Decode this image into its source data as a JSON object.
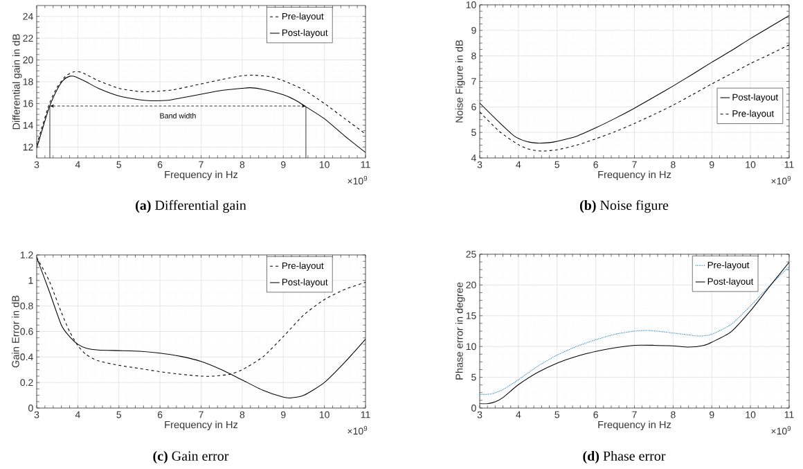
{
  "chart_data": [
    {
      "type": "line",
      "title": "**(a)** Differential gain",
      "xlabel": "Frequency in Hz",
      "ylabel": "Differential gain in dB",
      "xlim": [
        3,
        11
      ],
      "ylim": [
        11,
        25
      ],
      "xticks": [
        3,
        4,
        5,
        6,
        7,
        8,
        9,
        10,
        11
      ],
      "yticks": [
        12,
        14,
        16,
        18,
        20,
        22,
        24
      ],
      "grid": true,
      "legend": "top right",
      "series": [
        {
          "name": "Pre-layout",
          "color": "#000000",
          "line_style": "dashed",
          "x": [
            3,
            3.3,
            3.5,
            3.7,
            3.9,
            4.1,
            4.5,
            5,
            5.5,
            5.8,
            6.3,
            7,
            7.5,
            8,
            8.3,
            8.7,
            9,
            9.5,
            10,
            10.5,
            11
          ],
          "values": [
            12.2,
            15.9,
            17.5,
            18.5,
            18.9,
            18.85,
            18.1,
            17.4,
            17.1,
            17.1,
            17.25,
            17.8,
            18.2,
            18.55,
            18.6,
            18.45,
            18.1,
            17.25,
            16.0,
            14.6,
            13.2
          ]
        },
        {
          "name": "Post-layout",
          "color": "#000000",
          "line_style": "solid",
          "x": [
            3,
            3.3,
            3.5,
            3.65,
            3.8,
            3.95,
            4.2,
            4.5,
            5,
            5.5,
            5.8,
            6.2,
            6.5,
            7,
            7.5,
            8,
            8.2,
            8.5,
            9,
            9.3,
            9.55,
            10,
            10.5,
            11
          ],
          "values": [
            11.9,
            15.6,
            17.3,
            18.15,
            18.5,
            18.45,
            18.0,
            17.4,
            16.7,
            16.35,
            16.25,
            16.3,
            16.5,
            16.85,
            17.2,
            17.4,
            17.45,
            17.3,
            16.8,
            16.3,
            15.7,
            14.6,
            13.0,
            11.5
          ]
        }
      ],
      "ref_lines": [
        {
          "axis": "x",
          "value": 3.32
        },
        {
          "axis": "x",
          "value": 9.55
        }
      ],
      "annotations": [
        "×10$^{9}$",
        "Band width"
      ]
    },
    {
      "type": "line",
      "title": "**(b)** Noise figure",
      "xlabel": "Frequency in Hz",
      "ylabel": "Noise Figure in dB",
      "xlim": [
        3,
        11
      ],
      "ylim": [
        4,
        10
      ],
      "xticks": [
        3,
        4,
        5,
        6,
        7,
        8,
        9,
        10,
        11
      ],
      "yticks": [
        4,
        5,
        6,
        7,
        8,
        9,
        10
      ],
      "grid": true,
      "legend": "right",
      "series": [
        {
          "name": "Post-layout",
          "color": "#000000",
          "line_style": "solid",
          "x": [
            3,
            3.5,
            3.9,
            4.2,
            4.5,
            4.8,
            5,
            5.5,
            6,
            6.5,
            7,
            7.5,
            8,
            8.5,
            9,
            9.5,
            10,
            10.5,
            11
          ],
          "values": [
            6.15,
            5.4,
            4.85,
            4.65,
            4.58,
            4.6,
            4.65,
            4.85,
            5.18,
            5.55,
            5.95,
            6.38,
            6.82,
            7.28,
            7.75,
            8.2,
            8.68,
            9.13,
            9.58
          ]
        },
        {
          "name": "Pre-layout",
          "color": "#000000",
          "line_style": "dashed",
          "x": [
            3,
            3.5,
            4,
            4.3,
            4.6,
            5,
            5.5,
            6,
            6.5,
            7,
            7.5,
            8,
            8.5,
            9,
            9.5,
            10,
            10.5,
            11
          ],
          "values": [
            5.8,
            5.05,
            4.52,
            4.33,
            4.27,
            4.32,
            4.5,
            4.75,
            5.03,
            5.35,
            5.7,
            6.07,
            6.48,
            6.9,
            7.3,
            7.7,
            8.06,
            8.43
          ]
        }
      ],
      "annotations": [
        "×10$^{9}$"
      ]
    },
    {
      "type": "line",
      "title": "**(c)** Gain error",
      "xlabel": "Frequency in Hz",
      "ylabel": "Gain Error in dB",
      "xlim": [
        3,
        11
      ],
      "ylim": [
        0,
        1.2
      ],
      "xticks": [
        3,
        4,
        5,
        6,
        7,
        8,
        9,
        10,
        11
      ],
      "yticks": [
        0,
        0.2,
        0.4,
        0.6,
        0.8,
        1,
        1.2
      ],
      "grid": true,
      "legend": "top right",
      "series": [
        {
          "name": "Pre-layout",
          "color": "#000000",
          "line_style": "dashed",
          "x": [
            3,
            3.3,
            3.6,
            3.8,
            4,
            4.2,
            4.5,
            5,
            5.5,
            6,
            6.5,
            7,
            7.3,
            7.7,
            8,
            8.5,
            9,
            9.5,
            10,
            10.5,
            11
          ],
          "values": [
            1.18,
            1.0,
            0.75,
            0.6,
            0.49,
            0.42,
            0.37,
            0.335,
            0.31,
            0.285,
            0.265,
            0.25,
            0.25,
            0.265,
            0.3,
            0.4,
            0.56,
            0.73,
            0.85,
            0.93,
            0.985
          ]
        },
        {
          "name": "Post-layout",
          "color": "#000000",
          "line_style": "solid",
          "x": [
            3,
            3.3,
            3.6,
            3.8,
            4,
            4.2,
            4.5,
            5,
            5.5,
            6,
            6.5,
            7,
            7.5,
            8,
            8.5,
            9,
            9.2,
            9.5,
            10,
            10.5,
            11
          ],
          "values": [
            1.18,
            0.92,
            0.65,
            0.56,
            0.5,
            0.47,
            0.455,
            0.45,
            0.445,
            0.43,
            0.405,
            0.365,
            0.3,
            0.22,
            0.14,
            0.085,
            0.08,
            0.1,
            0.2,
            0.36,
            0.54
          ]
        }
      ],
      "annotations": [
        "×10$^{9}$"
      ]
    },
    {
      "type": "line",
      "title": "**(d)** Phase error",
      "xlabel": "Frequency in Hz",
      "ylabel": "Phase error in degree",
      "xlim": [
        3,
        11
      ],
      "ylim": [
        0,
        25
      ],
      "xticks": [
        3,
        4,
        5,
        6,
        7,
        8,
        9,
        10,
        11
      ],
      "yticks": [
        0,
        5,
        10,
        15,
        20,
        25
      ],
      "grid": true,
      "legend": "top right",
      "series": [
        {
          "name": "Pre-layout",
          "color": "#0072bd",
          "line_style": "dotted",
          "x": [
            3,
            3.3,
            3.6,
            4,
            4.5,
            5,
            5.5,
            6,
            6.5,
            7,
            7.4,
            8,
            8.5,
            8.7,
            9,
            9.5,
            10,
            10.5,
            11
          ],
          "values": [
            2.2,
            2.3,
            3.0,
            4.6,
            6.8,
            8.6,
            10.0,
            11.1,
            12.0,
            12.5,
            12.6,
            12.2,
            11.8,
            11.7,
            12.0,
            13.6,
            16.6,
            19.9,
            23.0
          ]
        },
        {
          "name": "Post-layout",
          "color": "#000000",
          "line_style": "solid",
          "x": [
            3,
            3.2,
            3.4,
            3.6,
            4,
            4.5,
            5,
            5.5,
            6,
            6.5,
            7,
            7.5,
            8,
            8.4,
            8.8,
            9,
            9.5,
            10,
            10.5,
            11
          ],
          "values": [
            0.7,
            0.7,
            1.0,
            1.7,
            3.8,
            5.8,
            7.3,
            8.4,
            9.2,
            9.8,
            10.2,
            10.2,
            10.1,
            9.9,
            10.2,
            10.7,
            12.4,
            15.8,
            19.8,
            23.7
          ]
        }
      ],
      "annotations": [
        "×10$^{9}$"
      ]
    }
  ]
}
